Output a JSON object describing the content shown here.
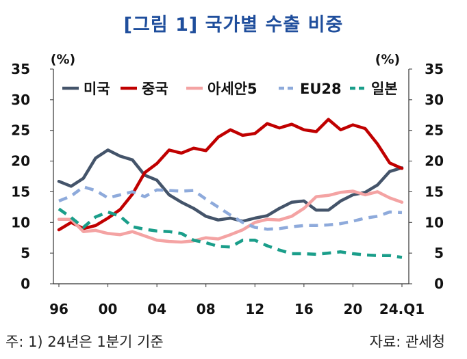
{
  "title": "[그림 1] 국가별 수출 비중",
  "footer": {
    "note": "주: 1) 24년은 1분기 기준",
    "source": "자료: 관세청"
  },
  "chart_data": {
    "type": "line",
    "ylabel_left": "(%)",
    "ylabel_right": "(%)",
    "ylim": [
      0,
      35
    ],
    "yticks": [
      0,
      5,
      10,
      15,
      20,
      25,
      30,
      35
    ],
    "xlim": [
      1996,
      2024
    ],
    "x": [
      1996,
      1997,
      1998,
      1999,
      2000,
      2001,
      2002,
      2003,
      2004,
      2005,
      2006,
      2007,
      2008,
      2009,
      2010,
      2011,
      2012,
      2013,
      2014,
      2015,
      2016,
      2017,
      2018,
      2019,
      2020,
      2021,
      2022,
      2023,
      2024
    ],
    "xticks": [
      {
        "x": 1996,
        "label": "96"
      },
      {
        "x": 2000,
        "label": "00"
      },
      {
        "x": 2004,
        "label": "04"
      },
      {
        "x": 2008,
        "label": "08"
      },
      {
        "x": 2012,
        "label": "12"
      },
      {
        "x": 2016,
        "label": "16"
      },
      {
        "x": 2020,
        "label": "20"
      },
      {
        "x": 2024,
        "label": "24.Q1"
      }
    ],
    "legend_position": "top",
    "grid": false,
    "series": [
      {
        "name": "미국",
        "color": "#44546a",
        "dash": "solid",
        "values": [
          16.7,
          15.9,
          17.2,
          20.5,
          21.8,
          20.8,
          20.2,
          17.7,
          16.9,
          14.5,
          13.3,
          12.3,
          11.0,
          10.4,
          10.7,
          10.2,
          10.7,
          11.1,
          12.3,
          13.3,
          13.5,
          12.0,
          12.0,
          13.5,
          14.5,
          14.9,
          16.1,
          18.3,
          18.9
        ]
      },
      {
        "name": "중국",
        "color": "#c00000",
        "dash": "solid",
        "values": [
          8.8,
          10.0,
          9.0,
          9.5,
          10.7,
          12.1,
          14.6,
          18.1,
          19.6,
          21.8,
          21.3,
          22.1,
          21.7,
          23.9,
          25.1,
          24.2,
          24.5,
          26.1,
          25.4,
          26.0,
          25.1,
          24.8,
          26.8,
          25.1,
          25.9,
          25.3,
          22.8,
          19.7,
          18.8
        ]
      },
      {
        "name": "아세안5",
        "color": "#f4a3a3",
        "dash": "solid",
        "values": [
          10.5,
          10.5,
          8.5,
          8.7,
          8.2,
          8.0,
          8.5,
          7.8,
          7.1,
          6.9,
          6.8,
          7.0,
          7.5,
          7.3,
          8.0,
          8.8,
          10.0,
          10.5,
          10.4,
          11.0,
          12.3,
          14.2,
          14.4,
          14.9,
          15.1,
          14.5,
          15.0,
          14.0,
          13.3
        ]
      },
      {
        "name": "EU28",
        "color": "#8eaadb",
        "dash": "dashed",
        "values": [
          13.5,
          14.3,
          15.8,
          15.2,
          14.0,
          14.5,
          15.0,
          14.2,
          15.3,
          15.2,
          15.1,
          15.2,
          13.8,
          12.5,
          11.2,
          10.0,
          9.2,
          8.9,
          9.0,
          9.3,
          9.5,
          9.5,
          9.6,
          9.8,
          10.2,
          10.7,
          11.0,
          11.7,
          11.6
        ]
      },
      {
        "name": "일본",
        "color": "#1a9e8a",
        "dash": "dashed",
        "values": [
          12.2,
          10.8,
          9.2,
          10.9,
          11.7,
          11.0,
          9.3,
          8.9,
          8.6,
          8.5,
          8.2,
          7.1,
          6.7,
          6.1,
          6.0,
          7.1,
          7.1,
          6.2,
          5.5,
          4.9,
          4.9,
          4.8,
          5.0,
          5.2,
          4.9,
          4.7,
          4.6,
          4.6,
          4.3
        ]
      }
    ]
  }
}
